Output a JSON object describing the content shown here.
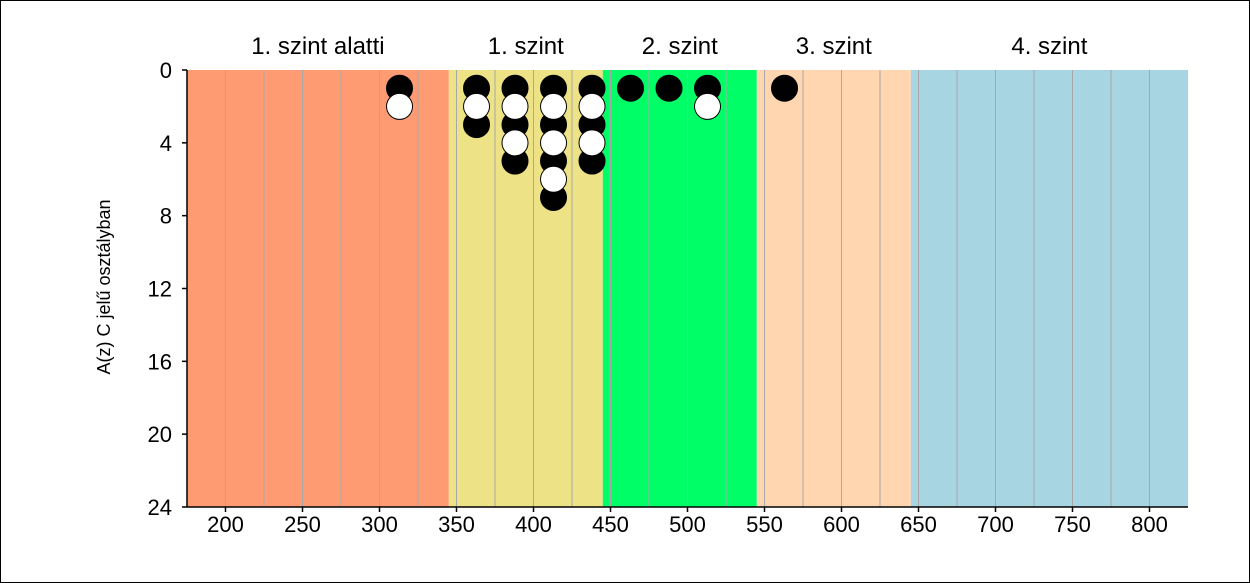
{
  "chart_data": {
    "type": "scatter",
    "title": "",
    "xlabel": "",
    "ylabel": "A(z) C jelű osztályban",
    "xlim": [
      175,
      825
    ],
    "ylim": [
      0,
      24
    ],
    "y_inverted": true,
    "x_ticks": [
      200,
      250,
      300,
      350,
      400,
      450,
      500,
      550,
      600,
      650,
      700,
      750,
      800
    ],
    "x_minor_grid": [
      225,
      275,
      325,
      375,
      425,
      475,
      525,
      575,
      625,
      675,
      725,
      775
    ],
    "y_ticks": [
      0,
      4,
      8,
      12,
      16,
      20,
      24
    ],
    "bands": [
      {
        "label": "1. szint alatti",
        "from": 175,
        "to": 345,
        "color": "#FF9B73"
      },
      {
        "label": "1. szint",
        "from": 345,
        "to": 445,
        "color": "#EDE285"
      },
      {
        "label": "2. szint",
        "from": 445,
        "to": 545,
        "color": "#00FF66"
      },
      {
        "label": "3. szint",
        "from": 545,
        "to": 645,
        "color": "#FFD6B0"
      },
      {
        "label": "4. szint",
        "from": 645,
        "to": 825,
        "color": "#A8D5E2"
      }
    ],
    "series": [
      {
        "marker": "filled-black",
        "color": "#000000",
        "points": [
          {
            "x": 313,
            "y": 1
          },
          {
            "x": 363,
            "y": 1
          },
          {
            "x": 363,
            "y": 3
          },
          {
            "x": 388,
            "y": 1
          },
          {
            "x": 388,
            "y": 3
          },
          {
            "x": 388,
            "y": 5
          },
          {
            "x": 413,
            "y": 1
          },
          {
            "x": 413,
            "y": 3
          },
          {
            "x": 413,
            "y": 5
          },
          {
            "x": 413,
            "y": 7
          },
          {
            "x": 438,
            "y": 1
          },
          {
            "x": 438,
            "y": 3
          },
          {
            "x": 438,
            "y": 5
          },
          {
            "x": 463,
            "y": 1
          },
          {
            "x": 488,
            "y": 1
          },
          {
            "x": 513,
            "y": 1
          },
          {
            "x": 563,
            "y": 1
          }
        ]
      },
      {
        "marker": "hollow-white",
        "color": "#FFFFFF",
        "points": [
          {
            "x": 313,
            "y": 2
          },
          {
            "x": 363,
            "y": 2
          },
          {
            "x": 388,
            "y": 2
          },
          {
            "x": 388,
            "y": 4
          },
          {
            "x": 413,
            "y": 2
          },
          {
            "x": 413,
            "y": 4
          },
          {
            "x": 413,
            "y": 6
          },
          {
            "x": 438,
            "y": 2
          },
          {
            "x": 438,
            "y": 4
          },
          {
            "x": 513,
            "y": 2
          }
        ]
      }
    ]
  }
}
